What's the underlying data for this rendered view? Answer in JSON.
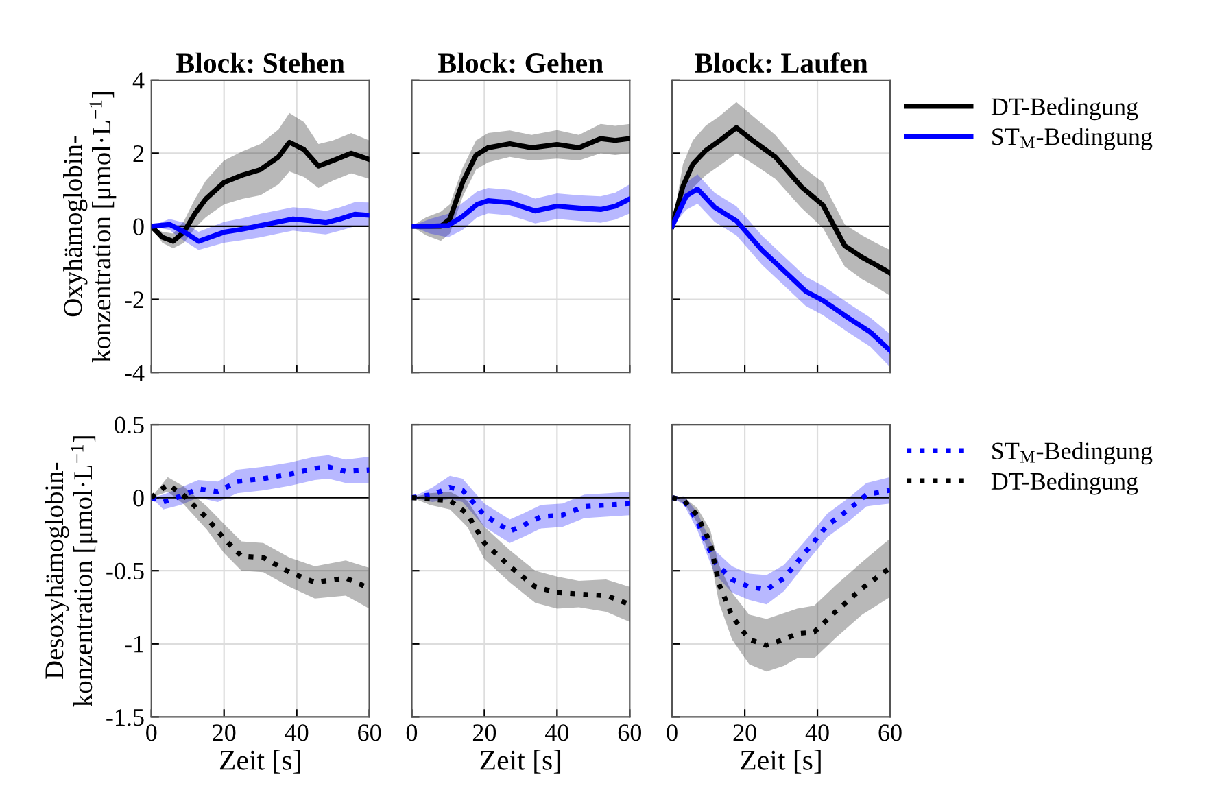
{
  "chart_data": [
    {
      "type": "line",
      "title": "Block: Stehen",
      "ylabel": "Oxyhämoglobin-\nkonzentration [μmol·L$^{−1}$]",
      "xlim": [
        0,
        60
      ],
      "xticks": [
        0,
        20,
        40,
        60
      ],
      "ylim": [
        -4,
        4
      ],
      "yticks": [
        -4,
        -2,
        0,
        2,
        4
      ],
      "grid": true,
      "legend": false,
      "tick_labels": "y",
      "line_style": "solid",
      "ref_lines": [
        {
          "axis": "y",
          "value": 0,
          "color": "#000000"
        }
      ],
      "series": [
        {
          "color": "#000000",
          "x": [
            0,
            3,
            6,
            9,
            12,
            15,
            20,
            25,
            30,
            35,
            38,
            42,
            46,
            50,
            55,
            60
          ],
          "values": [
            0,
            -0.3,
            -0.41,
            -0.15,
            0.35,
            0.75,
            1.2,
            1.4,
            1.55,
            1.9,
            2.3,
            2.1,
            1.65,
            1.8,
            2.0,
            1.83
          ],
          "lower": [
            0,
            -0.45,
            -0.6,
            -0.45,
            -0.05,
            0.25,
            0.6,
            0.75,
            0.85,
            1.15,
            1.5,
            1.35,
            1.05,
            1.25,
            1.45,
            1.3
          ],
          "upper": [
            0,
            -0.15,
            -0.2,
            0.15,
            0.75,
            1.25,
            1.8,
            2.05,
            2.25,
            2.65,
            3.1,
            2.85,
            2.25,
            2.35,
            2.55,
            2.35
          ]
        },
        {
          "color": "#0000ff",
          "x": [
            0,
            5,
            9,
            13,
            20,
            25,
            30,
            35,
            39,
            44,
            48,
            52,
            56,
            60
          ],
          "values": [
            0,
            0.05,
            -0.15,
            -0.41,
            -0.16,
            -0.08,
            0.02,
            0.12,
            0.2,
            0.15,
            0.1,
            0.2,
            0.33,
            0.3
          ],
          "lower": [
            0,
            -0.1,
            -0.4,
            -0.65,
            -0.45,
            -0.38,
            -0.3,
            -0.2,
            -0.12,
            -0.18,
            -0.22,
            -0.12,
            0.0,
            0.0
          ],
          "upper": [
            0,
            0.2,
            0.1,
            -0.15,
            0.12,
            0.22,
            0.34,
            0.44,
            0.52,
            0.48,
            0.42,
            0.52,
            0.66,
            0.65
          ]
        }
      ]
    },
    {
      "type": "line",
      "title": "Block: Gehen",
      "xlim": [
        0,
        60
      ],
      "xticks": [
        0,
        20,
        40,
        60
      ],
      "ylim": [
        -4,
        4
      ],
      "yticks": [
        -4,
        -2,
        0,
        2,
        4
      ],
      "grid": true,
      "legend": false,
      "tick_labels": false,
      "line_style": "solid",
      "ref_lines": [
        {
          "axis": "y",
          "value": 0,
          "color": "#000000"
        }
      ],
      "series": [
        {
          "color": "#000000",
          "x": [
            0,
            4,
            8,
            10.5,
            14,
            17.7,
            21,
            27,
            33,
            40,
            46,
            52,
            56,
            60
          ],
          "values": [
            0,
            0,
            0,
            0.2,
            1.2,
            1.95,
            2.15,
            2.26,
            2.15,
            2.24,
            2.15,
            2.4,
            2.35,
            2.4
          ],
          "lower": [
            0,
            -0.25,
            -0.4,
            -0.2,
            0.8,
            1.55,
            1.75,
            1.9,
            1.8,
            1.85,
            1.8,
            2.0,
            1.95,
            2.0
          ],
          "upper": [
            0,
            0.25,
            0.4,
            0.6,
            1.6,
            2.35,
            2.55,
            2.62,
            2.5,
            2.63,
            2.5,
            2.8,
            2.75,
            2.8
          ]
        },
        {
          "color": "#0000ff",
          "x": [
            0,
            5,
            10,
            14,
            18,
            21,
            27,
            34,
            40,
            46,
            52,
            56,
            60
          ],
          "values": [
            0,
            0,
            0.02,
            0.27,
            0.6,
            0.7,
            0.65,
            0.42,
            0.55,
            0.5,
            0.46,
            0.55,
            0.75
          ],
          "lower": [
            0,
            -0.2,
            -0.3,
            -0.1,
            0.25,
            0.35,
            0.3,
            0.08,
            0.2,
            0.15,
            0.1,
            0.18,
            0.35
          ],
          "upper": [
            0,
            0.2,
            0.34,
            0.64,
            0.95,
            1.05,
            1.0,
            0.76,
            0.9,
            0.85,
            0.82,
            0.92,
            1.15
          ]
        }
      ]
    },
    {
      "type": "line",
      "title": "Block: Laufen",
      "xlim": [
        0,
        60
      ],
      "xticks": [
        0,
        20,
        40,
        60
      ],
      "ylim": [
        -4,
        4
      ],
      "yticks": [
        -4,
        -2,
        0,
        2,
        4
      ],
      "grid": true,
      "legend": "right",
      "tick_labels": false,
      "line_style": "solid",
      "ref_lines": [
        {
          "axis": "y",
          "value": 0,
          "color": "#000000"
        }
      ],
      "series": [
        {
          "name": "DT-Bedingung",
          "color": "#000000",
          "x": [
            0,
            3,
            5.7,
            9.3,
            12.9,
            17.7,
            22.4,
            28.4,
            35.6,
            41.5,
            47.5,
            52.3,
            56,
            60
          ],
          "values": [
            0,
            1.1,
            1.7,
            2.08,
            2.33,
            2.7,
            2.33,
            1.9,
            1.08,
            0.58,
            -0.53,
            -0.85,
            -1.05,
            -1.28
          ],
          "lower": [
            0,
            0.5,
            1.05,
            1.4,
            1.65,
            2.0,
            1.7,
            1.3,
            0.5,
            -0.05,
            -1.1,
            -1.45,
            -1.65,
            -1.9
          ],
          "upper": [
            0,
            1.7,
            2.35,
            2.76,
            3.0,
            3.4,
            3.0,
            2.5,
            1.65,
            1.2,
            0.05,
            -0.25,
            -0.45,
            -0.65
          ]
        },
        {
          "name": "ST$_{M}$-Bedingung",
          "color": "#0000ff",
          "x": [
            0,
            3.9,
            7,
            11.7,
            17.7,
            24.8,
            30.8,
            36.8,
            41.5,
            48.7,
            54.6,
            60
          ],
          "values": [
            0,
            0.83,
            1.02,
            0.52,
            0.15,
            -0.66,
            -1.22,
            -1.78,
            -2.03,
            -2.52,
            -2.9,
            -3.4
          ],
          "lower": [
            0,
            0.45,
            0.62,
            0.12,
            -0.25,
            -1.06,
            -1.62,
            -2.18,
            -2.43,
            -2.92,
            -3.3,
            -3.85
          ],
          "upper": [
            0,
            1.2,
            1.42,
            0.92,
            0.55,
            -0.26,
            -0.82,
            -1.38,
            -1.63,
            -2.12,
            -2.5,
            -2.95
          ]
        }
      ]
    },
    {
      "type": "line",
      "ylabel": "Desoxyhämoglobin-\nkonzentration [μmol·L$^{−1}$]",
      "xlabel": "Zeit [s]",
      "xlim": [
        0,
        60
      ],
      "xticks": [
        0,
        20,
        40,
        60
      ],
      "ylim": [
        -1.5,
        0.5
      ],
      "yticks": [
        -1.5,
        -1,
        -0.5,
        0,
        0.5
      ],
      "grid": true,
      "legend": false,
      "line_style": "dotted",
      "ref_lines": [
        {
          "axis": "y",
          "value": 0,
          "color": "#000000"
        }
      ],
      "series": [
        {
          "color": "#0000ff",
          "x": [
            0,
            3.3,
            8.1,
            12.9,
            18.3,
            23.6,
            30.8,
            38,
            45,
            48.7,
            53.5,
            60
          ],
          "values": [
            0,
            -0.03,
            0.01,
            0.06,
            0.04,
            0.11,
            0.13,
            0.16,
            0.2,
            0.21,
            0.18,
            0.19
          ],
          "lower": [
            0,
            -0.08,
            -0.05,
            0.0,
            -0.03,
            0.03,
            0.05,
            0.08,
            0.12,
            0.13,
            0.1,
            0.1
          ],
          "upper": [
            0,
            0.02,
            0.07,
            0.12,
            0.11,
            0.19,
            0.21,
            0.24,
            0.28,
            0.29,
            0.26,
            0.28
          ]
        },
        {
          "color": "#000000",
          "x": [
            0,
            4.5,
            8.7,
            15.3,
            20,
            24.8,
            30.8,
            38,
            45,
            53.5,
            60
          ],
          "values": [
            0,
            0.09,
            0.02,
            -0.14,
            -0.28,
            -0.4,
            -0.41,
            -0.51,
            -0.58,
            -0.55,
            -0.62
          ],
          "lower": [
            0,
            0.04,
            -0.04,
            -0.22,
            -0.38,
            -0.5,
            -0.51,
            -0.61,
            -0.69,
            -0.67,
            -0.76
          ],
          "upper": [
            0,
            0.14,
            0.08,
            -0.06,
            -0.18,
            -0.3,
            -0.31,
            -0.41,
            -0.47,
            -0.43,
            -0.48
          ]
        }
      ]
    },
    {
      "type": "line",
      "xlabel": "Zeit [s]",
      "xlim": [
        0,
        60
      ],
      "xticks": [
        0,
        20,
        40,
        60
      ],
      "ylim": [
        -1.5,
        0.5
      ],
      "yticks": [
        -1.5,
        -1,
        -0.5,
        0,
        0.5
      ],
      "grid": true,
      "legend": false,
      "tick_labels": "x",
      "line_style": "dotted",
      "ref_lines": [
        {
          "axis": "y",
          "value": 0,
          "color": "#000000"
        }
      ],
      "series": [
        {
          "color": "#0000ff",
          "x": [
            0,
            5.7,
            10.5,
            14,
            20,
            27,
            30.6,
            35.6,
            41.5,
            47.5,
            54,
            60
          ],
          "values": [
            0,
            0.02,
            0.07,
            0.05,
            -0.12,
            -0.23,
            -0.19,
            -0.13,
            -0.12,
            -0.06,
            -0.05,
            -0.04
          ],
          "lower": [
            0,
            -0.03,
            -0.01,
            -0.03,
            -0.2,
            -0.31,
            -0.27,
            -0.21,
            -0.2,
            -0.14,
            -0.13,
            -0.12
          ],
          "upper": [
            0,
            0.07,
            0.15,
            0.13,
            -0.04,
            -0.15,
            -0.11,
            -0.05,
            -0.04,
            0.02,
            0.03,
            0.04
          ]
        },
        {
          "color": "#000000",
          "x": [
            0,
            5,
            10.5,
            15.3,
            20,
            27,
            34,
            40,
            46,
            53.5,
            60
          ],
          "values": [
            0,
            -0.01,
            -0.02,
            -0.11,
            -0.31,
            -0.47,
            -0.61,
            -0.65,
            -0.66,
            -0.67,
            -0.73
          ],
          "lower": [
            0,
            -0.05,
            -0.08,
            -0.2,
            -0.42,
            -0.58,
            -0.72,
            -0.76,
            -0.75,
            -0.78,
            -0.85
          ],
          "upper": [
            0,
            0.03,
            0.04,
            -0.02,
            -0.2,
            -0.36,
            -0.5,
            -0.54,
            -0.57,
            -0.56,
            -0.61
          ]
        }
      ]
    },
    {
      "type": "line",
      "xlabel": "Zeit [s]",
      "xlim": [
        0,
        60
      ],
      "xticks": [
        0,
        20,
        40,
        60
      ],
      "ylim": [
        -1.5,
        0.5
      ],
      "yticks": [
        -1.5,
        -1,
        -0.5,
        0,
        0.5
      ],
      "grid": true,
      "legend": "right",
      "tick_labels": "x",
      "line_style": "dotted",
      "ref_lines": [
        {
          "axis": "y",
          "value": 0,
          "color": "#000000"
        }
      ],
      "series": [
        {
          "name": "ST$_{M}$-Bedingung",
          "color": "#0000ff",
          "x": [
            0,
            3.3,
            6.9,
            11.7,
            16.5,
            21.2,
            26,
            30.8,
            36.8,
            42.7,
            48.7,
            53.5,
            60
          ],
          "values": [
            0,
            -0.02,
            -0.16,
            -0.44,
            -0.56,
            -0.61,
            -0.63,
            -0.55,
            -0.37,
            -0.19,
            -0.08,
            0.02,
            0.05
          ],
          "lower": [
            0,
            -0.05,
            -0.22,
            -0.52,
            -0.65,
            -0.7,
            -0.73,
            -0.64,
            -0.45,
            -0.27,
            -0.16,
            -0.06,
            -0.04
          ],
          "upper": [
            0,
            0.01,
            -0.1,
            -0.36,
            -0.47,
            -0.52,
            -0.53,
            -0.46,
            -0.29,
            -0.11,
            0.0,
            0.1,
            0.14
          ]
        },
        {
          "name": "DT-Bedingung",
          "color": "#000000",
          "x": [
            0,
            3.3,
            6.9,
            10.5,
            12.9,
            16.5,
            21.2,
            26,
            30.8,
            34.4,
            39.1,
            45,
            52.3,
            60
          ],
          "values": [
            0,
            -0.02,
            -0.12,
            -0.31,
            -0.59,
            -0.81,
            -0.97,
            -1.01,
            -0.97,
            -0.93,
            -0.92,
            -0.78,
            -0.62,
            -0.48
          ],
          "lower": [
            0,
            -0.04,
            -0.17,
            -0.4,
            -0.72,
            -0.97,
            -1.14,
            -1.19,
            -1.15,
            -1.1,
            -1.1,
            -0.96,
            -0.8,
            -0.68
          ],
          "upper": [
            0,
            0.0,
            -0.07,
            -0.22,
            -0.46,
            -0.65,
            -0.8,
            -0.83,
            -0.79,
            -0.76,
            -0.74,
            -0.6,
            -0.44,
            -0.28
          ]
        }
      ]
    }
  ]
}
